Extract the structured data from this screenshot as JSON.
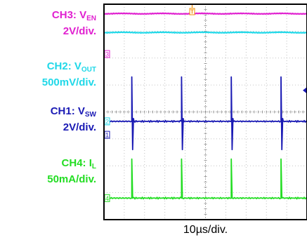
{
  "chart_data": {
    "type": "line",
    "title": "",
    "x_scale": "10µs/div.",
    "grid": true,
    "x_divisions": 10,
    "y_divisions": 8,
    "trigger_marker": {
      "label": "T",
      "color": "#f08c00"
    },
    "channels": [
      {
        "id": "CH3",
        "name": "CH3: V",
        "sub": "EN",
        "scale": "2V/div.",
        "color": "#e020d0",
        "marker": "3",
        "marker_div": 1.85,
        "waveform": "dc",
        "level_div": 0.35
      },
      {
        "id": "CH2",
        "name": "CH2: V",
        "sub": "OUT",
        "scale": "500mV/div.",
        "color": "#20d8e8",
        "marker": "2",
        "marker_div": 4.35,
        "waveform": "dc",
        "level_div": 1.05
      },
      {
        "id": "CH1",
        "name": "CH1: V",
        "sub": "SW",
        "scale": "2V/div.",
        "color": "#1a1ab4",
        "marker": "1",
        "marker_div": 4.85,
        "waveform": "spikes",
        "level_div": 4.35,
        "spike_up_div": 1.65,
        "spike_down_div": 1.05,
        "spike_times_div": [
          1.37,
          3.82,
          6.27,
          8.72
        ],
        "pointer_div": 3.2
      },
      {
        "id": "CH4",
        "name": "CH4: I",
        "sub": "L",
        "scale": "50mA/div.",
        "color": "#22dd22",
        "marker": "4",
        "marker_div": 7.2,
        "waveform": "pulses",
        "level_div": 7.2,
        "spike_up_div": 1.45,
        "spike_times_div": [
          1.37,
          3.82,
          6.27,
          8.72
        ]
      }
    ]
  }
}
